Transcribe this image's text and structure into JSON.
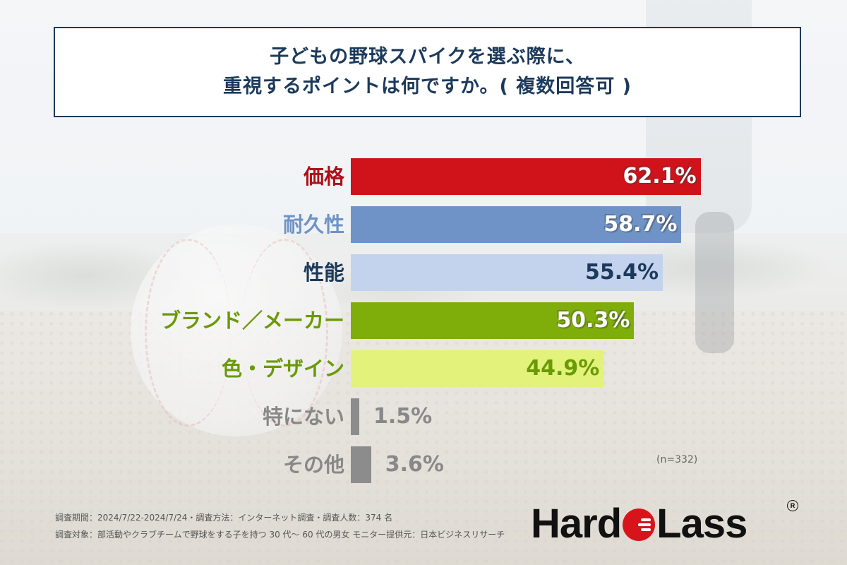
{
  "title": {
    "line1": "子どもの野球スパイクを選ぶ際に、",
    "line2": "重視するポイントは何ですか。( 複数回答可 )"
  },
  "chart_data": {
    "type": "bar",
    "orientation": "horizontal",
    "categories": [
      "価格",
      "耐久性",
      "性能",
      "ブランド／メーカー",
      "色・デザイン",
      "特にない",
      "その他"
    ],
    "values": [
      62.1,
      58.7,
      55.4,
      50.3,
      44.9,
      1.5,
      3.6
    ],
    "value_labels": [
      "62.1%",
      "58.7%",
      "55.4%",
      "50.3%",
      "44.9%",
      "1.5%",
      "3.6%"
    ],
    "unit": "%",
    "bar_colors": [
      "#d0121b",
      "#6f93c6",
      "#c3d3ee",
      "#7fae0a",
      "#e2f27a",
      "#8c8c8c",
      "#8c8c8c"
    ],
    "label_colors": [
      "#b0101a",
      "#6f93c6",
      "#1c3a5b",
      "#6a9a06",
      "#6a9a06",
      "#888888",
      "#888888"
    ],
    "n_label": "(n=332)"
  },
  "footer": {
    "line1": "調査期間：2024/7/22-2024/7/24・調査方法：インターネット調査・調査人数：374 名",
    "line2": "調査対象：部活動やクラブチームで野球をする子を持つ 30 代〜 60 代の男女 モニター提供元：日本ビジネスリサーチ"
  },
  "logo": {
    "part1": "Hard",
    "part2": "Lass",
    "registered": "R"
  }
}
